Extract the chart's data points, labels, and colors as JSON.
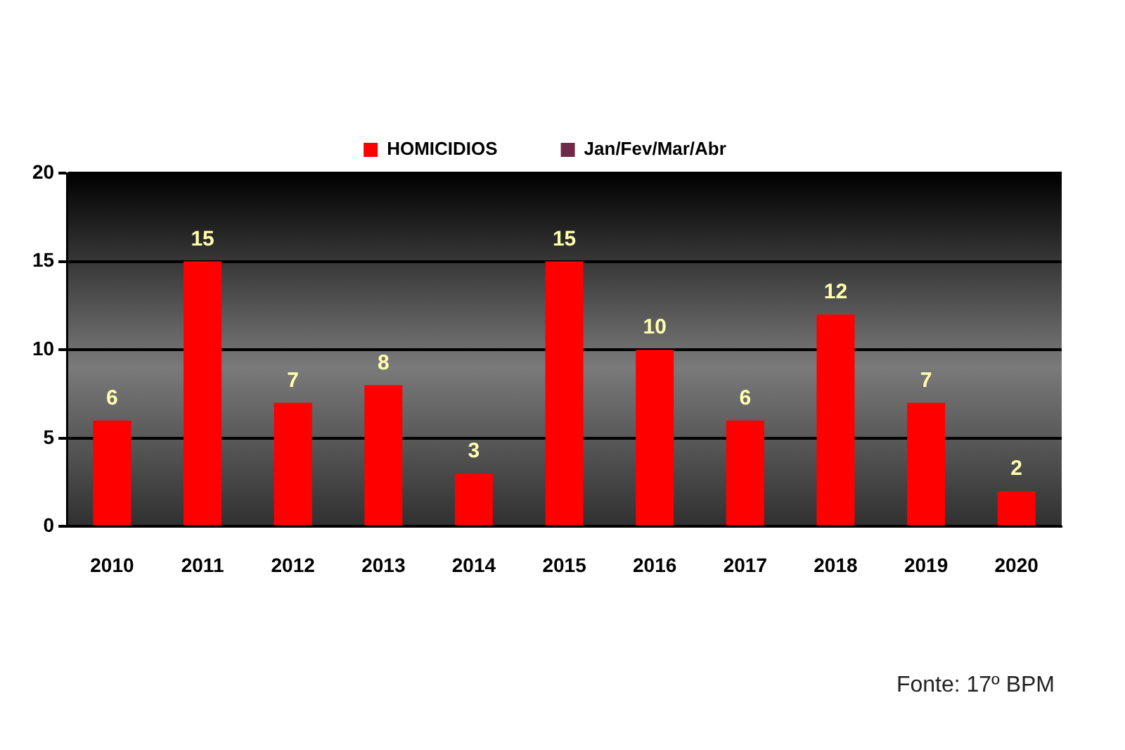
{
  "chart_data": {
    "type": "bar",
    "categories": [
      "2010",
      "2011",
      "2012",
      "2013",
      "2014",
      "2015",
      "2016",
      "2017",
      "2018",
      "2019",
      "2020"
    ],
    "series": [
      {
        "name": "HOMICIDIOS",
        "color": "#ff0000",
        "values": [
          6,
          15,
          7,
          8,
          3,
          15,
          10,
          6,
          12,
          7,
          2
        ]
      },
      {
        "name": "Jan/Fev/Mar/Abr",
        "color": "#6e2a48",
        "values": [
          null,
          null,
          null,
          null,
          null,
          null,
          null,
          null,
          null,
          null,
          null
        ]
      }
    ],
    "ylim": [
      0,
      20
    ],
    "yticks": [
      0,
      5,
      10,
      15,
      20
    ],
    "grid": "y",
    "legend": "top",
    "data_labels": true,
    "annotations": [
      "Fonte: 17º BPM"
    ]
  }
}
